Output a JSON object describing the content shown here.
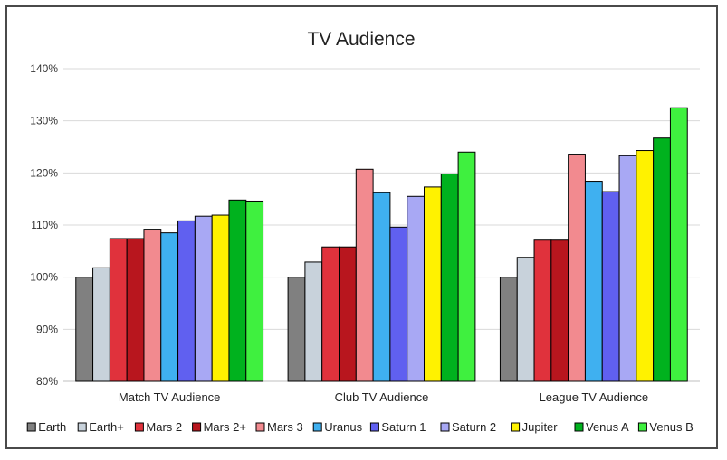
{
  "chart_data": {
    "type": "bar",
    "title": "TV Audience",
    "xlabel": "",
    "ylabel": "",
    "ylim": [
      80,
      140
    ],
    "yticks": [
      "80%",
      "90%",
      "100%",
      "110%",
      "120%",
      "130%",
      "140%"
    ],
    "grid": true,
    "legend_position": "bottom",
    "categories": [
      "Match TV Audience",
      "Club TV Audience",
      "League TV Audience"
    ],
    "series": [
      {
        "name": "Earth",
        "color": "#808080",
        "values": [
          100.0,
          100.0,
          100.0
        ]
      },
      {
        "name": "Earth+",
        "color": "#c8d2db",
        "values": [
          101.8,
          102.9,
          103.8
        ]
      },
      {
        "name": "Mars 2",
        "color": "#e0323c",
        "values": [
          107.4,
          105.8,
          107.1
        ]
      },
      {
        "name": "Mars 2+",
        "color": "#b8161e",
        "values": [
          107.4,
          105.8,
          107.1
        ]
      },
      {
        "name": "Mars 3",
        "color": "#f28a8f",
        "values": [
          109.2,
          120.7,
          123.6
        ]
      },
      {
        "name": "Uranus",
        "color": "#3fb0f0",
        "values": [
          108.5,
          116.2,
          118.4
        ]
      },
      {
        "name": "Saturn 1",
        "color": "#6060f0",
        "values": [
          110.8,
          109.6,
          116.4
        ]
      },
      {
        "name": "Saturn 2",
        "color": "#a8a8f4",
        "values": [
          111.7,
          115.5,
          123.3
        ]
      },
      {
        "name": "Jupiter",
        "color": "#fff200",
        "values": [
          111.9,
          117.3,
          124.3
        ]
      },
      {
        "name": "Venus A",
        "color": "#00b21e",
        "values": [
          114.8,
          119.8,
          126.7
        ]
      },
      {
        "name": "Venus B",
        "color": "#3ff03f",
        "values": [
          114.6,
          124.0,
          132.5
        ]
      }
    ]
  }
}
